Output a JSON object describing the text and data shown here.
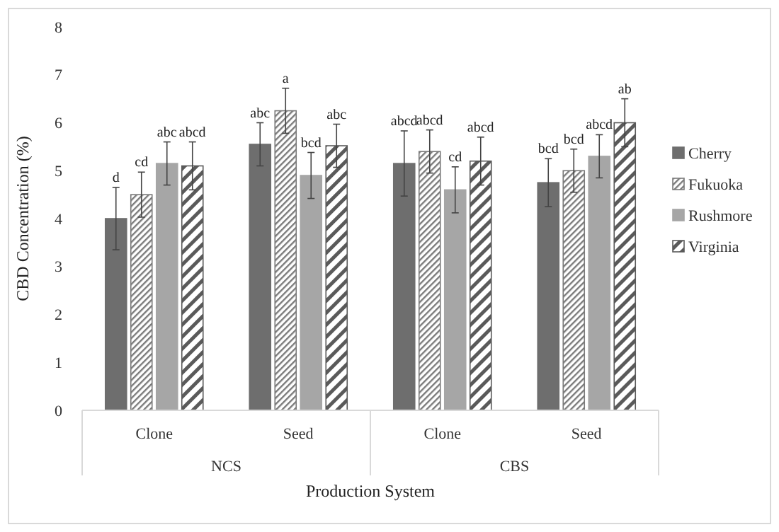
{
  "chart_data": {
    "type": "bar",
    "xlabel": "Production System",
    "ylabel": "CBD Concentration (%)",
    "categories": [
      "Clone",
      "Seed",
      "Clone",
      "Seed"
    ],
    "annotations": [
      "NCS",
      "CBS"
    ],
    "ylim": [
      0,
      8
    ],
    "yticks": [
      0,
      1,
      2,
      3,
      4,
      5,
      6,
      7,
      8
    ],
    "grid": false,
    "legend": "right",
    "series": [
      {
        "name": "Cherry",
        "color": "#6e6e6e",
        "values": [
          4.0,
          5.55,
          5.15,
          4.75
        ],
        "errors": [
          0.65,
          0.45,
          0.68,
          0.5
        ],
        "value_labels": [
          "d",
          "abc",
          "abcd",
          "bcd"
        ]
      },
      {
        "name": "Fukuoka",
        "color": "#7a7a7a",
        "values": [
          4.5,
          6.25,
          5.4,
          5.0
        ],
        "errors": [
          0.47,
          0.47,
          0.45,
          0.45
        ],
        "value_labels": [
          "cd",
          "a",
          "abcd",
          "bcd"
        ]
      },
      {
        "name": "Rushmore",
        "color": "#a6a6a6",
        "values": [
          5.15,
          4.9,
          4.6,
          5.3
        ],
        "errors": [
          0.45,
          0.48,
          0.48,
          0.45
        ],
        "value_labels": [
          "abc",
          "bcd",
          "cd",
          "abcd"
        ]
      },
      {
        "name": "Virginia",
        "color": "#5a5a5a",
        "values": [
          5.1,
          5.52,
          5.2,
          6.0
        ],
        "errors": [
          0.5,
          0.45,
          0.5,
          0.5
        ],
        "value_labels": [
          "abcd",
          "abc",
          "abcd",
          "ab"
        ]
      }
    ]
  }
}
